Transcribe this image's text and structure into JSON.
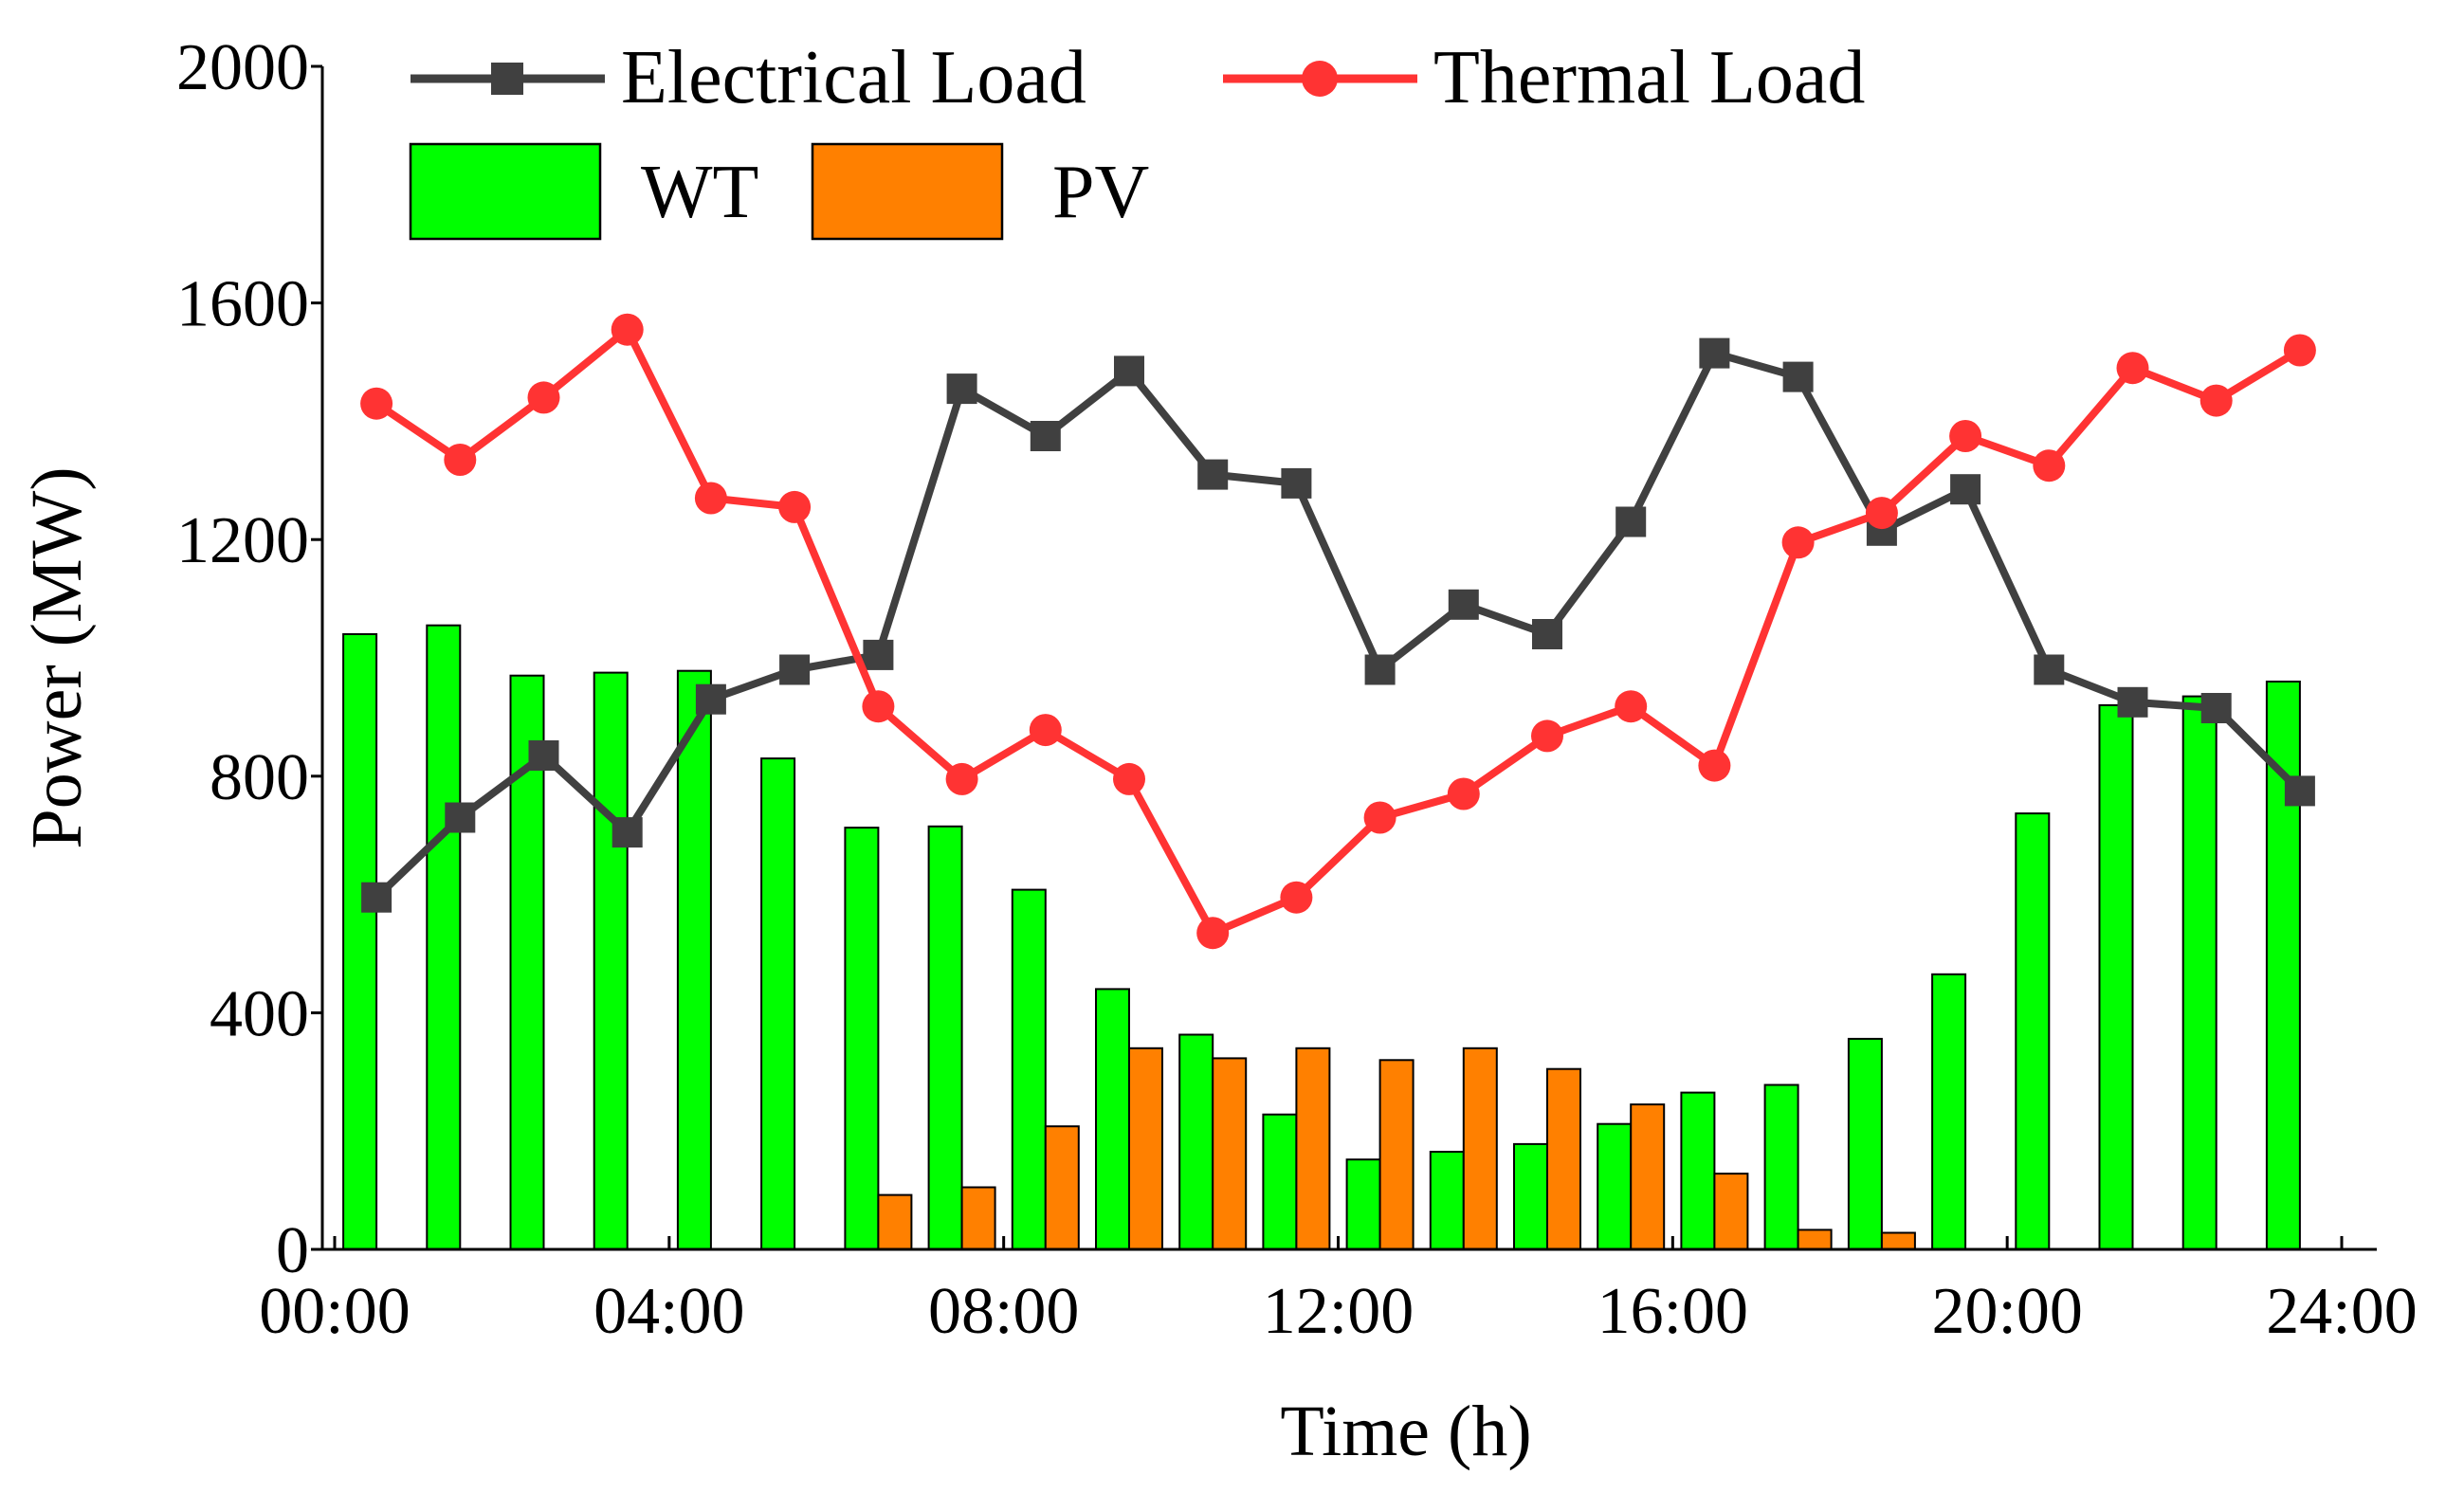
{
  "chart_data": {
    "type": "bar+line",
    "title": "",
    "xlabel": "Time (h)",
    "ylabel": "Power (MW)",
    "ylim": [
      0,
      2000
    ],
    "xlim": [
      0,
      24
    ],
    "y_ticks": [
      "0",
      "400",
      "800",
      "1200",
      "1600",
      "2000"
    ],
    "y_tick_values": [
      0,
      400,
      800,
      1200,
      1600,
      2000
    ],
    "x_ticks": [
      "00:00",
      "04:00",
      "08:00",
      "12:00",
      "16:00",
      "20:00",
      "24:00"
    ],
    "x_tick_values": [
      0,
      4,
      8,
      12,
      16,
      20,
      24
    ],
    "hours": [
      1,
      2,
      3,
      4,
      5,
      6,
      7,
      8,
      9,
      10,
      11,
      12,
      13,
      14,
      15,
      16,
      17,
      18,
      19,
      20,
      21,
      22,
      23,
      24
    ],
    "bar_series": [
      {
        "name": "WT",
        "color": "#00ff00",
        "values": [
          1040,
          1055,
          970,
          975,
          978,
          830,
          713,
          715,
          608,
          440,
          363,
          228,
          152,
          165,
          178,
          212,
          265,
          278,
          356,
          465,
          737,
          920,
          935,
          960
        ]
      },
      {
        "name": "PV",
        "color": "#ff8000",
        "values": [
          0,
          0,
          0,
          0,
          0,
          0,
          92,
          105,
          208,
          340,
          323,
          340,
          320,
          340,
          305,
          245,
          128,
          33,
          28,
          0,
          0,
          0,
          0,
          0
        ]
      }
    ],
    "line_series": [
      {
        "name": "Electrical Load",
        "color": "#404040",
        "marker": "square",
        "values": [
          595,
          730,
          835,
          705,
          930,
          980,
          1005,
          1455,
          1375,
          1485,
          1310,
          1295,
          980,
          1090,
          1040,
          1230,
          1515,
          1475,
          1215,
          1285,
          980,
          925,
          915,
          775
        ]
      },
      {
        "name": "Thermal Load",
        "color": "#ff3333",
        "marker": "circle",
        "values": [
          1430,
          1335,
          1440,
          1555,
          1270,
          1255,
          918,
          795,
          878,
          795,
          535,
          595,
          730,
          770,
          868,
          918,
          818,
          1195,
          1245,
          1375,
          1325,
          1490,
          1435,
          1520
        ]
      }
    ],
    "legend": {
      "placement": "top-left",
      "entries": [
        "Electrical Load",
        "Thermal Load",
        "WT",
        "PV"
      ]
    }
  }
}
